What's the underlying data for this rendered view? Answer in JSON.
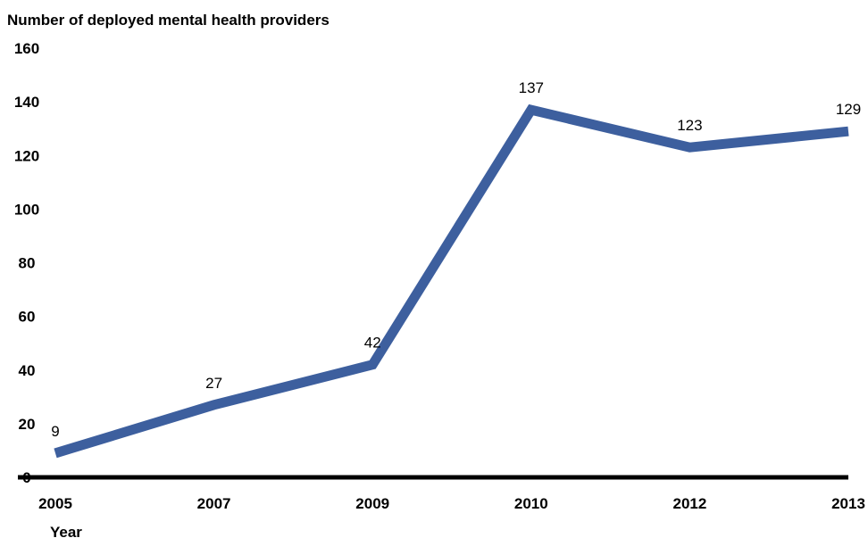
{
  "chart_data": {
    "type": "line",
    "title": "Number of deployed mental health providers",
    "xlabel": "Year",
    "ylabel": "",
    "categories": [
      "2005",
      "2007",
      "2009",
      "2010",
      "2012",
      "2013"
    ],
    "series": [
      {
        "name": "",
        "values": [
          9,
          27,
          42,
          137,
          123,
          129
        ]
      }
    ],
    "data_labels": [
      "9",
      "27",
      "42",
      "137",
      "123",
      "129"
    ],
    "yticks": [
      "0",
      "20",
      "40",
      "60",
      "80",
      "100",
      "120",
      "140",
      "160"
    ],
    "ylim": [
      0,
      160
    ],
    "grid": false,
    "legend": "none",
    "colors": {
      "line": "#3d5f9e",
      "axis": "#000000",
      "text": "#000000"
    }
  }
}
